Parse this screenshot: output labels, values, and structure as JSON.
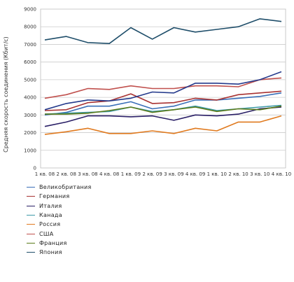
{
  "chart_data": {
    "type": "line",
    "ylabel": "Средняя скорость соединения (Кбит/с)",
    "ylim": [
      0,
      9000
    ],
    "yticks": [
      0,
      1000,
      2000,
      3000,
      4000,
      5000,
      6000,
      7000,
      8000,
      9000
    ],
    "categories": [
      "1 кв. 08",
      "2 кв. 08",
      "3 кв. 08",
      "4 кв. 08",
      "1 кв. 09",
      "2 кв. 09",
      "3 кв. 09",
      "4 кв. 09",
      "1 кв. 10",
      "2 кв. 10",
      "3 кв. 10",
      "4 кв. 10"
    ],
    "grid": true,
    "legend_position": "bottom",
    "series": [
      {
        "name": "Великобритания",
        "color": "#3a6fb8",
        "values": [
          3000,
          3150,
          3500,
          3500,
          3750,
          3350,
          3500,
          3850,
          3850,
          3950,
          4050,
          4250
        ]
      },
      {
        "name": "Германия",
        "color": "#a83232",
        "values": [
          3250,
          3300,
          3700,
          3800,
          4200,
          3650,
          3700,
          3950,
          3850,
          4150,
          4250,
          4350
        ]
      },
      {
        "name": "Италия",
        "color": "#2a1f66",
        "values": [
          2350,
          2600,
          2950,
          2950,
          2900,
          2950,
          2700,
          3000,
          2950,
          3050,
          3350,
          3450
        ]
      },
      {
        "name": "Канада",
        "color": "#3d9aa8",
        "values": [
          3050,
          3100,
          3150,
          3200,
          3450,
          3200,
          3300,
          3500,
          3250,
          3350,
          3450,
          3550
        ]
      },
      {
        "name": "Россия",
        "color": "#e07a1f",
        "values": [
          1900,
          2050,
          2250,
          1950,
          1950,
          2100,
          1950,
          2250,
          2100,
          2600,
          2600,
          2950
        ]
      },
      {
        "name": "США",
        "color": "#c0504d",
        "values": [
          3950,
          4150,
          4500,
          4450,
          4650,
          4500,
          4500,
          4650,
          4650,
          4600,
          5000,
          5100
        ]
      },
      {
        "name": "Франция",
        "color": "#5a7a1a",
        "values": [
          3050,
          3050,
          3100,
          3250,
          3450,
          3150,
          3300,
          3450,
          3200,
          3350,
          3300,
          3500
        ]
      },
      {
        "name": "Япония",
        "color": "#1f4e6a",
        "values": [
          7250,
          7450,
          7100,
          7050,
          7950,
          7300,
          7950,
          7700,
          7850,
          8000,
          8450,
          8300
        ]
      },
      {
        "name": "",
        "color": "#243a8c",
        "values": [
          3300,
          3650,
          3850,
          3800,
          3950,
          4300,
          4250,
          4800,
          4800,
          4750,
          5000,
          5450
        ]
      }
    ]
  }
}
